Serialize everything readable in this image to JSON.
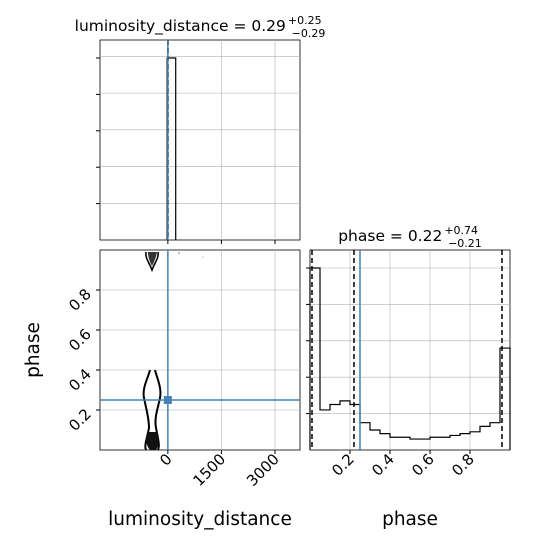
{
  "chart_data": {
    "type": "corner",
    "color_truth": "#4682b4",
    "color_contour": "#000000",
    "color_grid": "#b0b0b0",
    "parameters": [
      "luminosity_distance",
      "phase"
    ],
    "truths": {
      "luminosity_distance": 0,
      "phase": 0.25
    },
    "panels": {
      "luminosity_distance_hist": {
        "title_main": "luminosity_distance = 0.29",
        "title_sup": "+0.25",
        "title_sub": "−0.29",
        "xlim": [
          -1900,
          3700
        ],
        "xticks": [
          0,
          1500,
          3000
        ],
        "quantiles": [
          0.0,
          0.29,
          0.54
        ],
        "bins": [
          {
            "x0": -20,
            "x1": 220,
            "height": 1.0
          }
        ]
      },
      "phase_hist": {
        "title_main": "phase = 0.22",
        "title_sup": "+0.74",
        "title_sub": "−0.21",
        "xlim": [
          0.0,
          1.0
        ],
        "xticks": [
          0.2,
          0.4,
          0.6,
          0.8
        ],
        "xtick_labels": [
          "0.2",
          "0.4",
          "0.6",
          "0.8"
        ],
        "quantiles": [
          0.01,
          0.22,
          0.96
        ],
        "bin_edges": [
          0.0,
          0.05,
          0.1,
          0.15,
          0.2,
          0.25,
          0.3,
          0.35,
          0.4,
          0.45,
          0.5,
          0.55,
          0.6,
          0.65,
          0.7,
          0.75,
          0.8,
          0.85,
          0.9,
          0.95,
          1.0
        ],
        "counts": [
          1.0,
          0.22,
          0.25,
          0.27,
          0.25,
          0.15,
          0.11,
          0.09,
          0.07,
          0.07,
          0.06,
          0.06,
          0.07,
          0.07,
          0.08,
          0.09,
          0.1,
          0.13,
          0.15,
          0.56
        ]
      },
      "joint": {
        "xlim": [
          -1900,
          3700
        ],
        "ylim": [
          0.0,
          1.0
        ],
        "xticks": [
          0,
          1500,
          3000
        ],
        "xtick_labels": [
          "0",
          "1500",
          "3000"
        ],
        "yticks": [
          0.2,
          0.4,
          0.6,
          0.8
        ],
        "ytick_labels": [
          "0.2",
          "0.4",
          "0.6",
          "0.8"
        ],
        "xlabel": "luminosity_distance",
        "ylabel": "phase",
        "truth_point": [
          0,
          0.25
        ]
      }
    },
    "bottom_xlabel_right": "phase"
  }
}
